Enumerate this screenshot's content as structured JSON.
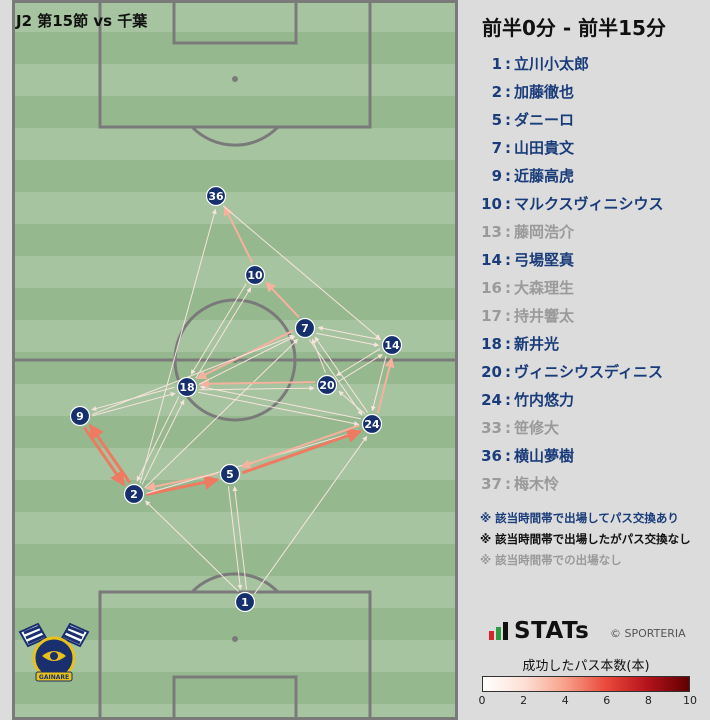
{
  "header": {
    "match_title": "J2 第15節 vs 千葉"
  },
  "period": {
    "label": "前半0分 - 前半15分"
  },
  "players": [
    {
      "num": "1",
      "name": "立川小太郎",
      "status": "played"
    },
    {
      "num": "2",
      "name": "加藤徹也",
      "status": "played"
    },
    {
      "num": "5",
      "name": "ダニーロ",
      "status": "played"
    },
    {
      "num": "7",
      "name": "山田貴文",
      "status": "played"
    },
    {
      "num": "9",
      "name": "近藤高虎",
      "status": "played"
    },
    {
      "num": "10",
      "name": "マルクスヴィニシウス",
      "status": "played"
    },
    {
      "num": "13",
      "name": "藤岡浩介",
      "status": "none"
    },
    {
      "num": "14",
      "name": "弓場堅真",
      "status": "played"
    },
    {
      "num": "16",
      "name": "大森理生",
      "status": "none"
    },
    {
      "num": "17",
      "name": "持井響太",
      "status": "none"
    },
    {
      "num": "18",
      "name": "新井光",
      "status": "played"
    },
    {
      "num": "20",
      "name": "ヴィニシウスディニス",
      "status": "played"
    },
    {
      "num": "24",
      "name": "竹内悠力",
      "status": "played"
    },
    {
      "num": "33",
      "name": "笹修大",
      "status": "none"
    },
    {
      "num": "36",
      "name": "横山夢樹",
      "status": "played"
    },
    {
      "num": "37",
      "name": "梅木怜",
      "status": "none"
    }
  ],
  "notes": [
    {
      "text": "※ 該当時間帯で出場してパス交換あり",
      "color": "#1a3c7a"
    },
    {
      "text": "※ 該当時間帯で出場したがパス交換なし",
      "color": "#111111"
    },
    {
      "text": "※ 該当時間帯での出場なし",
      "color": "#9a9a9a"
    }
  ],
  "branding": {
    "stats_word": "STATs",
    "copyright": "© SPORTERIA",
    "crest_text": "GAINARE"
  },
  "scale": {
    "title": "成功したパス本数(本)",
    "ticks": [
      "0",
      "2",
      "4",
      "6",
      "8",
      "10"
    ]
  },
  "pitch_nodes": [
    {
      "num": "36"
    },
    {
      "num": "10"
    },
    {
      "num": "7"
    },
    {
      "num": "14"
    },
    {
      "num": "18"
    },
    {
      "num": "20"
    },
    {
      "num": "9"
    },
    {
      "num": "24"
    },
    {
      "num": "5"
    },
    {
      "num": "2"
    },
    {
      "num": "1"
    }
  ],
  "passes": [
    {
      "from": "1",
      "to": "2",
      "count": 1
    },
    {
      "from": "1",
      "to": "5",
      "count": 1
    },
    {
      "from": "1",
      "to": "24",
      "count": 1
    },
    {
      "from": "2",
      "to": "9",
      "count": 3
    },
    {
      "from": "9",
      "to": "2",
      "count": 3
    },
    {
      "from": "2",
      "to": "5",
      "count": 3
    },
    {
      "from": "5",
      "to": "2",
      "count": 2
    },
    {
      "from": "2",
      "to": "24",
      "count": 1
    },
    {
      "from": "2",
      "to": "18",
      "count": 1
    },
    {
      "from": "2",
      "to": "7",
      "count": 1
    },
    {
      "from": "5",
      "to": "24",
      "count": 3
    },
    {
      "from": "24",
      "to": "5",
      "count": 2
    },
    {
      "from": "24",
      "to": "14",
      "count": 2
    },
    {
      "from": "14",
      "to": "24",
      "count": 1
    },
    {
      "from": "24",
      "to": "7",
      "count": 1
    },
    {
      "from": "7",
      "to": "24",
      "count": 1
    },
    {
      "from": "24",
      "to": "18",
      "count": 1
    },
    {
      "from": "18",
      "to": "24",
      "count": 1
    },
    {
      "from": "24",
      "to": "20",
      "count": 1
    },
    {
      "from": "20",
      "to": "18",
      "count": 2
    },
    {
      "from": "18",
      "to": "20",
      "count": 1
    },
    {
      "from": "20",
      "to": "14",
      "count": 1
    },
    {
      "from": "14",
      "to": "20",
      "count": 1
    },
    {
      "from": "14",
      "to": "7",
      "count": 1
    },
    {
      "from": "7",
      "to": "14",
      "count": 1
    },
    {
      "from": "7",
      "to": "10",
      "count": 2
    },
    {
      "from": "10",
      "to": "36",
      "count": 2
    },
    {
      "from": "36",
      "to": "14",
      "count": 1
    },
    {
      "from": "7",
      "to": "18",
      "count": 2
    },
    {
      "from": "18",
      "to": "7",
      "count": 1
    },
    {
      "from": "18",
      "to": "10",
      "count": 1
    },
    {
      "from": "10",
      "to": "18",
      "count": 1
    },
    {
      "from": "9",
      "to": "18",
      "count": 1
    },
    {
      "from": "18",
      "to": "9",
      "count": 1
    },
    {
      "from": "9",
      "to": "7",
      "count": 1
    },
    {
      "from": "2",
      "to": "36",
      "count": 1
    },
    {
      "from": "18",
      "to": "2",
      "count": 1
    },
    {
      "from": "20",
      "to": "7",
      "count": 1
    },
    {
      "from": "5",
      "to": "1",
      "count": 1
    }
  ]
}
